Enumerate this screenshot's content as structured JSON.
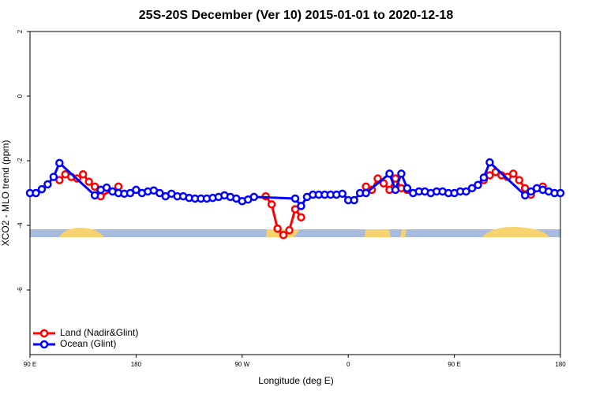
{
  "chart_data": {
    "type": "line",
    "title": "25S-20S December (Ver 10)   2015-01-01 to 2020-12-18",
    "x_label": "Longitude (deg E)",
    "y_label": "XCO2 - MLO trend (ppm)",
    "xlim": [
      90,
      540
    ],
    "ylim": [
      -8,
      2
    ],
    "xticks": [
      {
        "value": 90,
        "label": "90 E"
      },
      180,
      {
        "value": 270,
        "label": "90 W"
      },
      {
        "value": 360,
        "label": "0"
      },
      {
        "value": 450,
        "label": "90 E"
      },
      {
        "value": 540,
        "label": "180"
      }
    ],
    "yticks": [
      2,
      0,
      -2,
      -4,
      -6
    ],
    "legend": "bottom-left",
    "series": [
      {
        "name": "Land (Nadir&Glint)",
        "color": "#ff0000",
        "x": [
          115,
          120,
          125,
          130,
          135,
          140,
          145,
          150,
          165,
          290,
          295,
          300,
          305,
          310,
          315,
          320,
          375,
          380,
          385,
          390,
          395,
          400,
          405,
          410,
          475,
          480,
          485,
          490,
          495,
          500,
          505,
          510,
          515,
          525
        ],
        "values": [
          -2.6,
          -2.42,
          -2.5,
          -2.55,
          -2.42,
          -2.65,
          -2.8,
          -3.1,
          -2.8,
          -3.1,
          -3.35,
          -4.1,
          -4.3,
          -4.15,
          -3.5,
          -3.75,
          -2.8,
          -2.9,
          -2.55,
          -2.7,
          -2.9,
          -2.55,
          -2.85,
          -2.9,
          -2.6,
          -2.45,
          -2.35,
          -2.45,
          -2.5,
          -2.4,
          -2.6,
          -2.85,
          -3.05,
          -2.8
        ]
      },
      {
        "name": "Ocean (Glint)",
        "color": "#0000ff",
        "x": [
          90,
          95,
          100,
          105,
          110,
          115,
          145,
          150,
          155,
          160,
          165,
          170,
          175,
          180,
          185,
          190,
          195,
          200,
          205,
          210,
          215,
          220,
          225,
          230,
          235,
          240,
          245,
          250,
          255,
          260,
          265,
          270,
          275,
          280,
          315,
          320,
          325,
          330,
          335,
          340,
          345,
          350,
          355,
          360,
          365,
          370,
          375,
          395,
          400,
          405,
          410,
          415,
          420,
          425,
          430,
          435,
          440,
          445,
          450,
          455,
          460,
          465,
          470,
          475,
          480,
          510,
          515,
          520,
          525,
          530,
          535,
          540
        ],
        "values": [
          -3.0,
          -3.0,
          -2.88,
          -2.73,
          -2.5,
          -2.07,
          -3.07,
          -2.9,
          -2.83,
          -2.95,
          -3.0,
          -3.02,
          -3.0,
          -2.9,
          -3.0,
          -2.95,
          -2.92,
          -3.0,
          -3.1,
          -3.02,
          -3.1,
          -3.1,
          -3.15,
          -3.17,
          -3.17,
          -3.17,
          -3.15,
          -3.12,
          -3.07,
          -3.12,
          -3.17,
          -3.25,
          -3.2,
          -3.12,
          -3.17,
          -3.4,
          -3.12,
          -3.05,
          -3.05,
          -3.05,
          -3.05,
          -3.05,
          -3.02,
          -3.22,
          -3.22,
          -3.0,
          -3.0,
          -2.4,
          -2.9,
          -2.4,
          -2.85,
          -3.0,
          -2.95,
          -2.95,
          -3.0,
          -2.95,
          -2.95,
          -3.0,
          -3.0,
          -2.95,
          -2.95,
          -2.85,
          -2.75,
          -2.52,
          -2.05,
          -3.07,
          -2.95,
          -2.85,
          -2.9,
          -2.95,
          -3.0,
          -3.0
        ]
      }
    ]
  }
}
